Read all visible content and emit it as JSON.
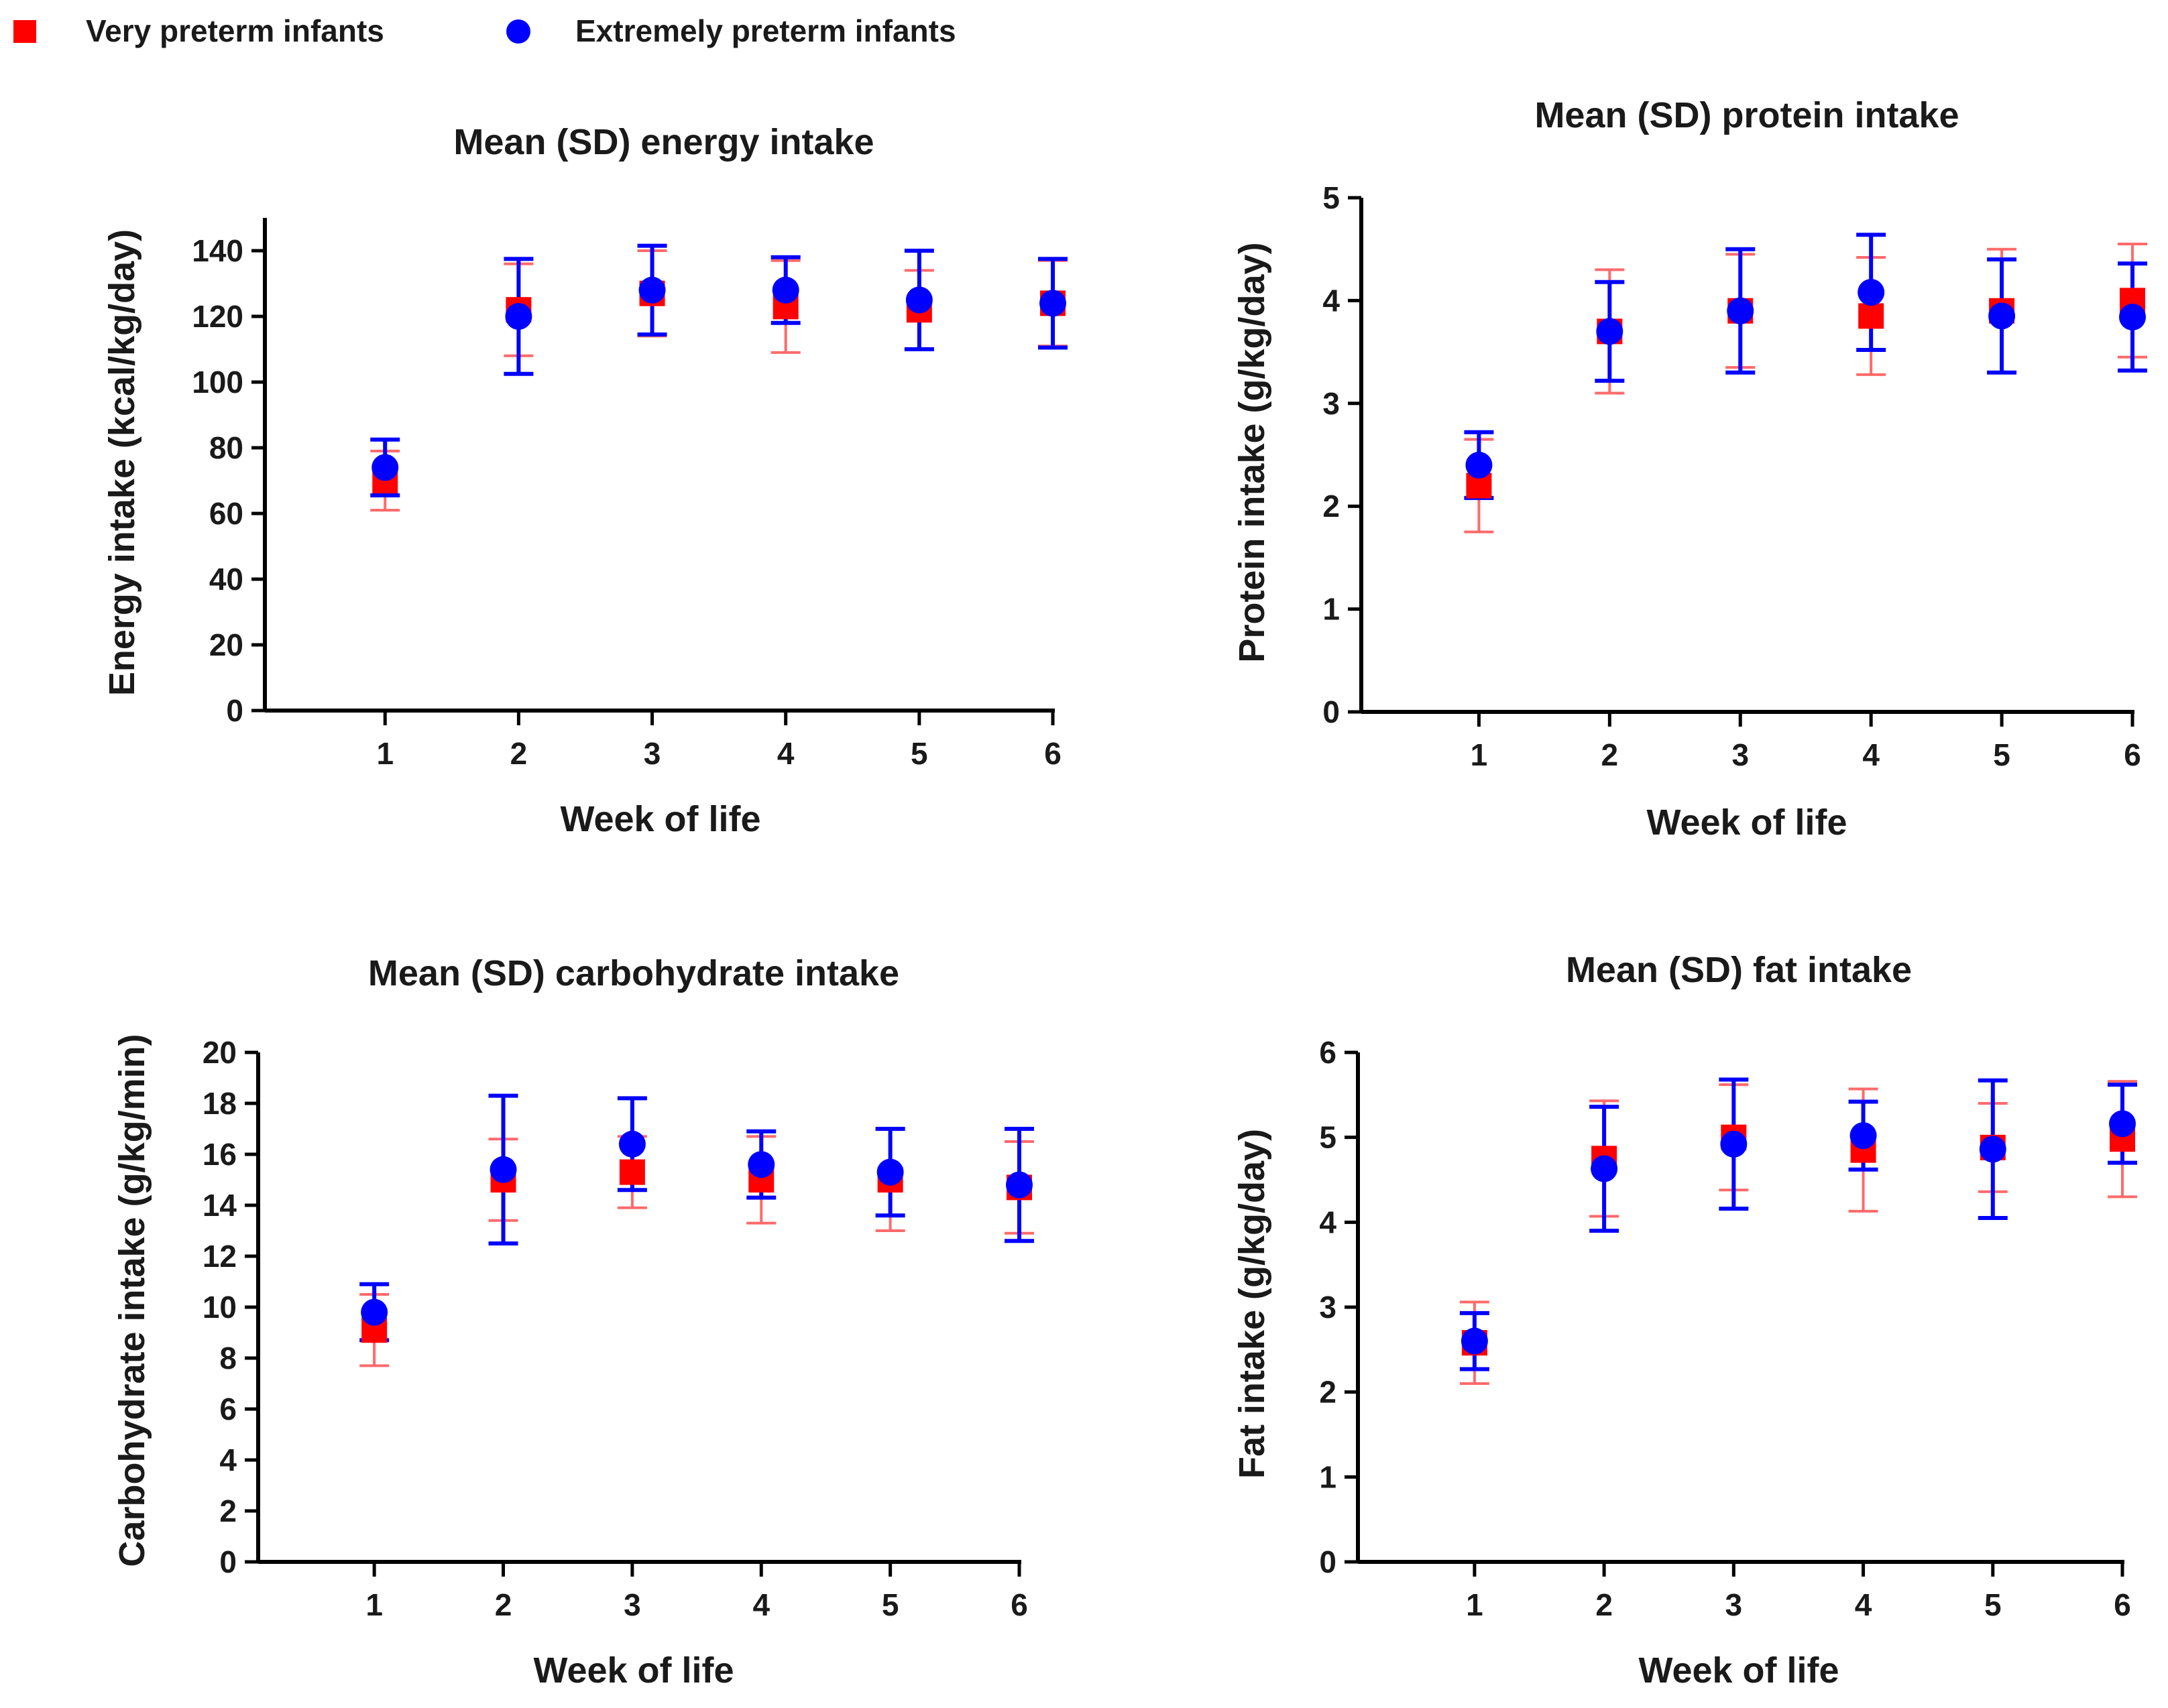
{
  "legend": {
    "items": [
      {
        "label": "Very preterm infants",
        "marker": "square",
        "color": "#ff0000"
      },
      {
        "label": "Extremely preterm infants",
        "marker": "circle",
        "color": "#0000ff"
      }
    ]
  },
  "colors": {
    "very_preterm": "#ff0000",
    "very_preterm_error": "#ff6a6a",
    "extremely_preterm": "#0000ff",
    "axis": "#000000"
  },
  "chart_data": [
    {
      "id": "energy",
      "type": "scatter",
      "title": "Mean (SD) energy intake",
      "xlabel": "Week of life",
      "ylabel": "Energy intake (kcal/kg/day)",
      "x": [
        1,
        2,
        3,
        4,
        5,
        6
      ],
      "xlim": [
        0.1,
        6
      ],
      "ylim": [
        0,
        150
      ],
      "yticks": [
        0,
        20,
        40,
        60,
        80,
        100,
        120,
        140
      ],
      "series": [
        {
          "name": "Very preterm infants",
          "marker": "square",
          "color": "#ff0000",
          "values": [
            70,
            122,
            127,
            123,
            122,
            124
          ],
          "sd": [
            9,
            14,
            13,
            14,
            12,
            13
          ]
        },
        {
          "name": "Extremely preterm infants",
          "marker": "circle",
          "color": "#0000ff",
          "values": [
            74,
            120,
            128,
            128,
            125,
            124
          ],
          "sd": [
            8.5,
            17.5,
            13.5,
            10,
            15,
            13.5
          ]
        }
      ]
    },
    {
      "id": "protein",
      "type": "scatter",
      "title": "Mean (SD) protein intake",
      "xlabel": "Week of life",
      "ylabel": "Protein intake (g/kg/day)",
      "x": [
        1,
        2,
        3,
        4,
        5,
        6
      ],
      "xlim": [
        0.1,
        6
      ],
      "ylim": [
        0,
        5
      ],
      "yticks": [
        0,
        1,
        2,
        3,
        4,
        5
      ],
      "series": [
        {
          "name": "Very preterm infants",
          "marker": "square",
          "color": "#ff0000",
          "values": [
            2.2,
            3.7,
            3.9,
            3.85,
            3.9,
            4.0
          ],
          "sd": [
            0.45,
            0.6,
            0.55,
            0.57,
            0.6,
            0.55
          ]
        },
        {
          "name": "Extremely preterm infants",
          "marker": "circle",
          "color": "#0000ff",
          "values": [
            2.4,
            3.7,
            3.9,
            4.08,
            3.85,
            3.84
          ],
          "sd": [
            0.32,
            0.48,
            0.6,
            0.56,
            0.55,
            0.52
          ]
        }
      ]
    },
    {
      "id": "carbohydrate",
      "type": "scatter",
      "title": "Mean (SD) carbohydrate intake",
      "xlabel": "Week of life",
      "ylabel": "Carbohydrate intake (g/kg/min)",
      "x": [
        1,
        2,
        3,
        4,
        5,
        6
      ],
      "xlim": [
        0.1,
        6
      ],
      "ylim": [
        0,
        20
      ],
      "yticks": [
        0,
        2,
        4,
        6,
        8,
        10,
        12,
        14,
        16,
        18,
        20
      ],
      "series": [
        {
          "name": "Very preterm infants",
          "marker": "square",
          "color": "#ff0000",
          "values": [
            9.1,
            15.0,
            15.3,
            15.0,
            15.0,
            14.7
          ],
          "sd": [
            1.4,
            1.6,
            1.4,
            1.7,
            2.0,
            1.8
          ]
        },
        {
          "name": "Extremely preterm infants",
          "marker": "circle",
          "color": "#0000ff",
          "values": [
            9.8,
            15.4,
            16.4,
            15.6,
            15.3,
            14.8
          ],
          "sd": [
            1.1,
            2.9,
            1.8,
            1.3,
            1.7,
            2.2
          ]
        }
      ]
    },
    {
      "id": "fat",
      "type": "scatter",
      "title": "Mean (SD) fat intake",
      "xlabel": "Week of life",
      "ylabel": "Fat intake (g/kg/day)",
      "x": [
        1,
        2,
        3,
        4,
        5,
        6
      ],
      "xlim": [
        0.1,
        6
      ],
      "ylim": [
        0,
        6
      ],
      "yticks": [
        0,
        1,
        2,
        3,
        4,
        5,
        6
      ],
      "series": [
        {
          "name": "Very preterm infants",
          "marker": "square",
          "color": "#ff0000",
          "values": [
            2.58,
            4.75,
            5.0,
            4.85,
            4.88,
            4.98
          ],
          "sd": [
            0.48,
            0.68,
            0.62,
            0.72,
            0.52,
            0.68
          ]
        },
        {
          "name": "Extremely preterm infants",
          "marker": "circle",
          "color": "#0000ff",
          "values": [
            2.6,
            4.63,
            4.92,
            5.02,
            4.86,
            5.16
          ],
          "sd": [
            0.33,
            0.73,
            0.76,
            0.4,
            0.81,
            0.46
          ]
        }
      ]
    }
  ]
}
